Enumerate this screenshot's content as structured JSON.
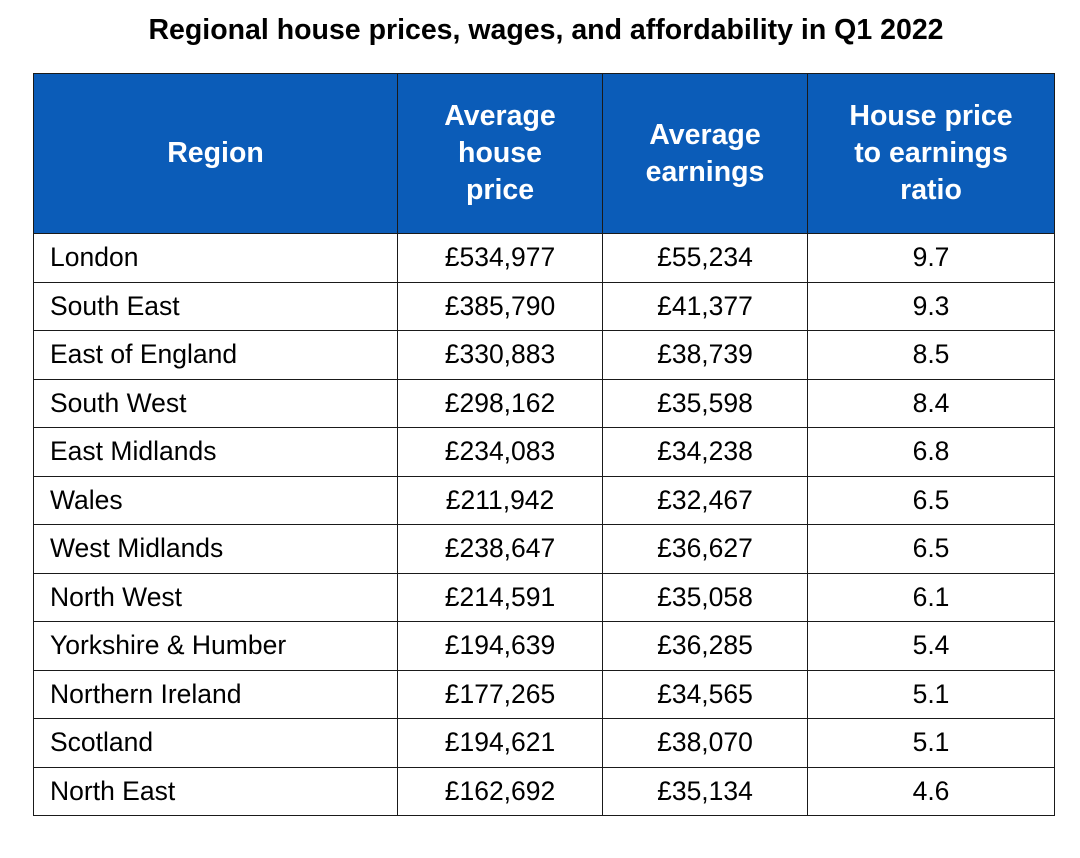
{
  "chart_data": {
    "type": "table",
    "title": "Regional house prices, wages, and affordability in Q1 2022",
    "header_color": "#0b5cb8",
    "columns": [
      "Region",
      "Average\nhouse\nprice",
      "Average\nearnings",
      "House price\nto earnings\nratio"
    ],
    "rows": [
      {
        "region": "London",
        "price": "£534,977",
        "earnings": "£55,234",
        "ratio": "9.7"
      },
      {
        "region": "South East",
        "price": "£385,790",
        "earnings": "£41,377",
        "ratio": "9.3"
      },
      {
        "region": "East of England",
        "price": "£330,883",
        "earnings": "£38,739",
        "ratio": "8.5"
      },
      {
        "region": "South West",
        "price": "£298,162",
        "earnings": "£35,598",
        "ratio": "8.4"
      },
      {
        "region": "East Midlands",
        "price": "£234,083",
        "earnings": "£34,238",
        "ratio": "6.8"
      },
      {
        "region": "Wales",
        "price": "£211,942",
        "earnings": "£32,467",
        "ratio": "6.5"
      },
      {
        "region": "West Midlands",
        "price": "£238,647",
        "earnings": "£36,627",
        "ratio": "6.5"
      },
      {
        "region": "North West",
        "price": "£214,591",
        "earnings": "£35,058",
        "ratio": "6.1"
      },
      {
        "region": "Yorkshire & Humber",
        "price": "£194,639",
        "earnings": "£36,285",
        "ratio": "5.4"
      },
      {
        "region": "Northern Ireland",
        "price": "£177,265",
        "earnings": "£34,565",
        "ratio": "5.1"
      },
      {
        "region": "Scotland",
        "price": "£194,621",
        "earnings": "£38,070",
        "ratio": "5.1"
      },
      {
        "region": "North East",
        "price": "£162,692",
        "earnings": "£35,134",
        "ratio": "4.6"
      }
    ]
  }
}
